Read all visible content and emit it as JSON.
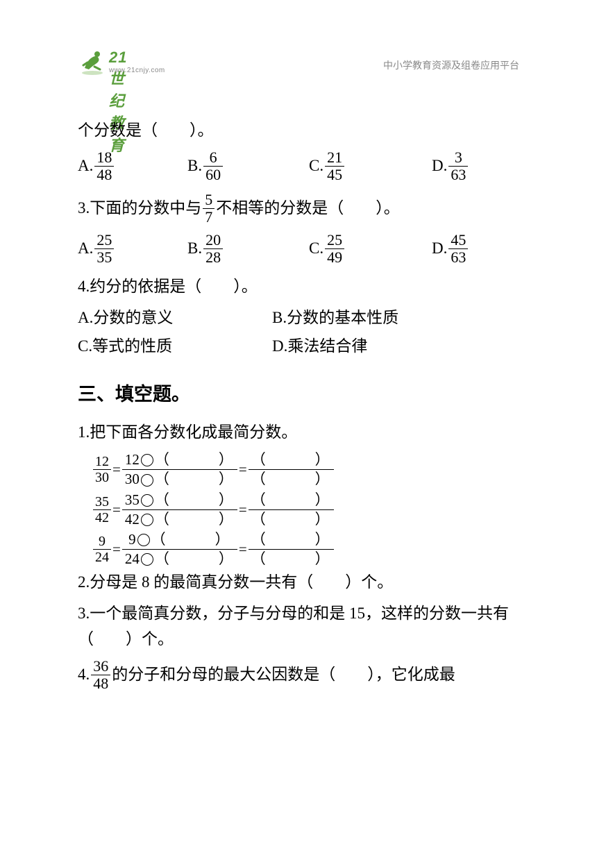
{
  "header": {
    "logo_cn": "21世纪教育",
    "logo_en": "www.21cnjy.com",
    "right_text": "中小学教育资源及组卷应用平台",
    "logo_color": "#5a9e3c"
  },
  "q2": {
    "stem": "个分数是（　　）。",
    "opts": {
      "A": {
        "num": "18",
        "den": "48"
      },
      "B": {
        "num": "6",
        "den": "60"
      },
      "C": {
        "num": "21",
        "den": "45"
      },
      "D": {
        "num": "3",
        "den": "63"
      }
    }
  },
  "q3": {
    "stem_a": "3.下面的分数中与",
    "frac": {
      "num": "5",
      "den": "7"
    },
    "stem_b": "不相等的分数是（　　）。",
    "opts": {
      "A": {
        "num": "25",
        "den": "35"
      },
      "B": {
        "num": "20",
        "den": "28"
      },
      "C": {
        "num": "25",
        "den": "49"
      },
      "D": {
        "num": "45",
        "den": "63"
      }
    }
  },
  "q4": {
    "stem": "4.约分的依据是（　　）。",
    "A": "A.分数的意义",
    "B": "B.分数的基本性质",
    "C": "C.等式的性质",
    "D": "D.乘法结合律"
  },
  "section3": {
    "title": "三、填空题。",
    "q1": {
      "stem": "1.把下面各分数化成最简分数。",
      "lines": [
        {
          "n": "12",
          "d": "30"
        },
        {
          "n": "35",
          "d": "42"
        },
        {
          "n": "9",
          "d": "24"
        }
      ],
      "blank": "（　　　）"
    },
    "q2": "2.分母是 8 的最简真分数一共有（　　）个。",
    "q3": "3.一个最简真分数，分子与分母的和是 15，这样的分数一共有（　　）个。",
    "q4": {
      "pre": "4.",
      "frac": {
        "num": "36",
        "den": "48"
      },
      "post": "的分子和分母的最大公因数是（　　），它化成最"
    }
  },
  "labels": {
    "A": "A.",
    "B": "B.",
    "C": "C.",
    "D": "D.",
    "eq": "="
  }
}
